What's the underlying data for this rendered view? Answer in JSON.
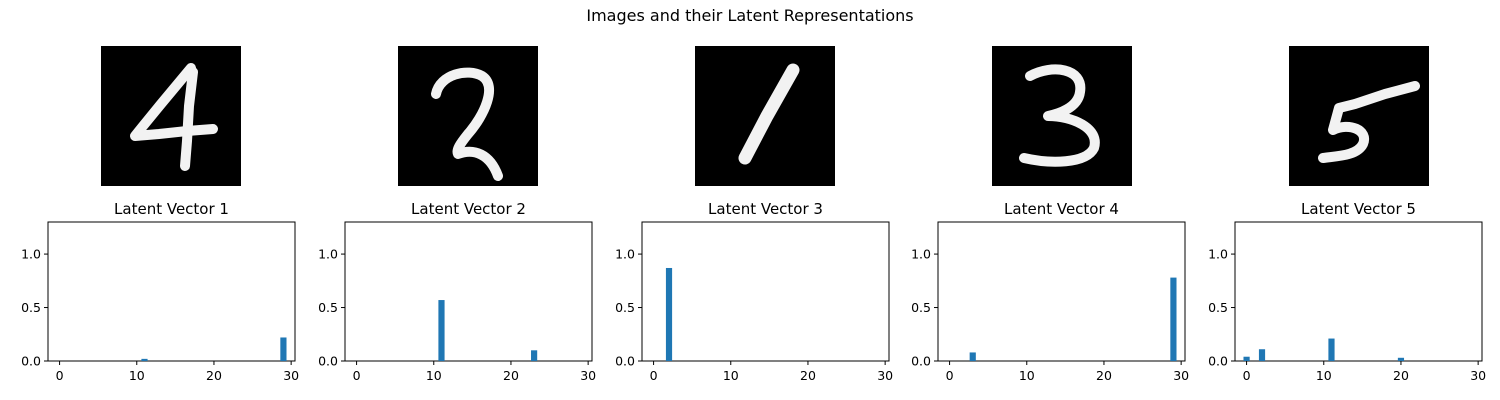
{
  "figure": {
    "title": "Images and their Latent Representations"
  },
  "chart_data": [
    {
      "type": "bar",
      "title": "Latent Vector 1",
      "xlabel": "",
      "ylabel": "",
      "xlim": [
        -1.5,
        30.5
      ],
      "ylim": [
        0,
        1.3
      ],
      "xticks": [
        0,
        10,
        20,
        30
      ],
      "yticks": [
        0.0,
        0.5,
        1.0
      ],
      "xtick_labels": [
        "0",
        "10",
        "20",
        "30"
      ],
      "ytick_labels": [
        "0.0",
        "0.5",
        "1.0"
      ],
      "bars": [
        {
          "x": 11,
          "y": 0.02
        },
        {
          "x": 29,
          "y": 0.22
        }
      ]
    },
    {
      "type": "bar",
      "title": "Latent Vector 2",
      "xlabel": "",
      "ylabel": "",
      "xlim": [
        -1.5,
        30.5
      ],
      "ylim": [
        0,
        1.3
      ],
      "xticks": [
        0,
        10,
        20,
        30
      ],
      "yticks": [
        0.0,
        0.5,
        1.0
      ],
      "xtick_labels": [
        "0",
        "10",
        "20",
        "30"
      ],
      "ytick_labels": [
        "0.0",
        "0.5",
        "1.0"
      ],
      "bars": [
        {
          "x": 11,
          "y": 0.57
        },
        {
          "x": 23,
          "y": 0.1
        }
      ]
    },
    {
      "type": "bar",
      "title": "Latent Vector 3",
      "xlabel": "",
      "ylabel": "",
      "xlim": [
        -1.5,
        30.5
      ],
      "ylim": [
        0,
        1.3
      ],
      "xticks": [
        0,
        10,
        20,
        30
      ],
      "yticks": [
        0.0,
        0.5,
        1.0
      ],
      "xtick_labels": [
        "0",
        "10",
        "20",
        "30"
      ],
      "ytick_labels": [
        "0.0",
        "0.5",
        "1.0"
      ],
      "bars": [
        {
          "x": 2,
          "y": 0.87
        }
      ]
    },
    {
      "type": "bar",
      "title": "Latent Vector 4",
      "xlabel": "",
      "ylabel": "",
      "xlim": [
        -1.5,
        30.5
      ],
      "ylim": [
        0,
        1.3
      ],
      "xticks": [
        0,
        10,
        20,
        30
      ],
      "yticks": [
        0.0,
        0.5,
        1.0
      ],
      "xtick_labels": [
        "0",
        "10",
        "20",
        "30"
      ],
      "ytick_labels": [
        "0.0",
        "0.5",
        "1.0"
      ],
      "bars": [
        {
          "x": 3,
          "y": 0.08
        },
        {
          "x": 29,
          "y": 0.78
        }
      ]
    },
    {
      "type": "bar",
      "title": "Latent Vector 5",
      "xlabel": "",
      "ylabel": "",
      "xlim": [
        -1.5,
        30.5
      ],
      "ylim": [
        0,
        1.3
      ],
      "xticks": [
        0,
        10,
        20,
        30
      ],
      "yticks": [
        0.0,
        0.5,
        1.0
      ],
      "xtick_labels": [
        "0",
        "10",
        "20",
        "30"
      ],
      "ytick_labels": [
        "0.0",
        "0.5",
        "1.0"
      ],
      "bars": [
        {
          "x": 0,
          "y": 0.04
        },
        {
          "x": 2,
          "y": 0.11
        },
        {
          "x": 11,
          "y": 0.21
        },
        {
          "x": 20,
          "y": 0.03
        }
      ]
    }
  ],
  "images": [
    {
      "digit": "4"
    },
    {
      "digit": "2"
    },
    {
      "digit": "1"
    },
    {
      "digit": "3"
    },
    {
      "digit": "5"
    }
  ],
  "colors": {
    "bar": "#1f77b4",
    "image_background": "#000000",
    "stroke": "#f2f2f2"
  }
}
